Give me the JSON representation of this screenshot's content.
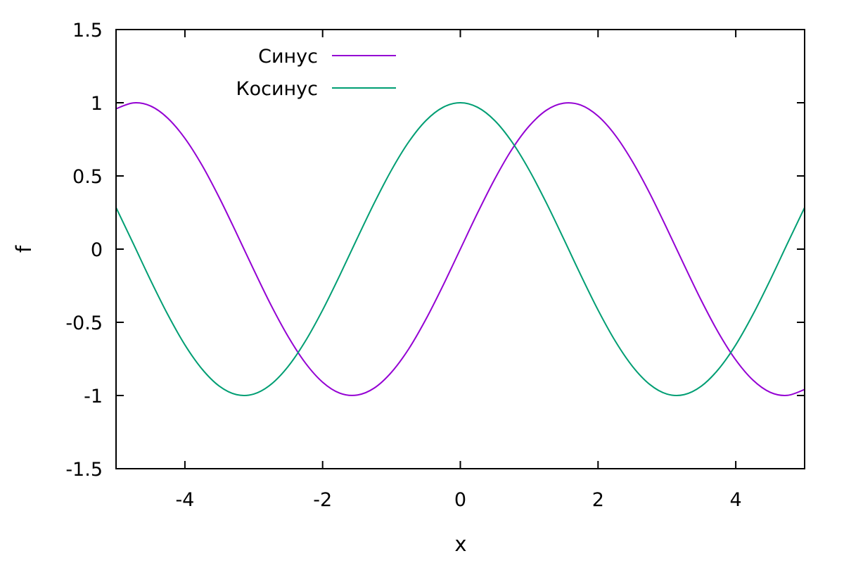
{
  "chart_data": {
    "type": "line",
    "title": "",
    "xlabel": "x",
    "ylabel": "f",
    "xlim": [
      -5,
      5
    ],
    "ylim": [
      -1.5,
      1.5
    ],
    "xticks": [
      -4,
      -2,
      0,
      2,
      4
    ],
    "xtick_labels": [
      "-4",
      "-2",
      "0",
      "2",
      "4"
    ],
    "yticks": [
      -1.5,
      -1,
      -0.5,
      0,
      0.5,
      1,
      1.5
    ],
    "ytick_labels": [
      "-1.5",
      "-1",
      "-0.5",
      "0",
      "0.5",
      "1",
      "1.5"
    ],
    "grid": false,
    "legend_position": "top-left",
    "x": [
      -5,
      -4.75,
      -4.5,
      -4.25,
      -4,
      -3.75,
      -3.5,
      -3.25,
      -3,
      -2.75,
      -2.5,
      -2.25,
      -2,
      -1.75,
      -1.5,
      -1.25,
      -1,
      -0.75,
      -0.5,
      -0.25,
      0,
      0.25,
      0.5,
      0.75,
      1,
      1.25,
      1.5,
      1.75,
      2,
      2.25,
      2.5,
      2.75,
      3,
      3.25,
      3.5,
      3.75,
      4,
      4.25,
      4.5,
      4.75,
      5
    ],
    "series": [
      {
        "name": "Синус",
        "color": "#9400d3",
        "values": [
          0.959,
          0.999,
          0.978,
          0.895,
          0.757,
          0.572,
          0.351,
          0.108,
          -0.141,
          -0.382,
          -0.598,
          -0.778,
          -0.909,
          -0.984,
          -0.997,
          -0.949,
          -0.841,
          -0.682,
          -0.479,
          -0.247,
          0,
          0.247,
          0.479,
          0.682,
          0.841,
          0.949,
          0.997,
          0.984,
          0.909,
          0.778,
          0.598,
          0.382,
          0.141,
          -0.108,
          -0.351,
          -0.572,
          -0.757,
          -0.895,
          -0.978,
          -0.999,
          -0.959
        ]
      },
      {
        "name": "Косинус",
        "color": "#009e73",
        "values": [
          0.284,
          0.038,
          -0.211,
          -0.446,
          -0.654,
          -0.82,
          -0.936,
          -0.994,
          -0.99,
          -0.924,
          -0.801,
          -0.628,
          -0.416,
          -0.178,
          0.071,
          0.315,
          0.54,
          0.732,
          0.878,
          0.969,
          1,
          0.969,
          0.878,
          0.732,
          0.54,
          0.315,
          0.071,
          -0.178,
          -0.416,
          -0.628,
          -0.801,
          -0.924,
          -0.99,
          -0.994,
          -0.936,
          -0.82,
          -0.654,
          -0.446,
          -0.211,
          0.038,
          0.284
        ]
      }
    ]
  }
}
